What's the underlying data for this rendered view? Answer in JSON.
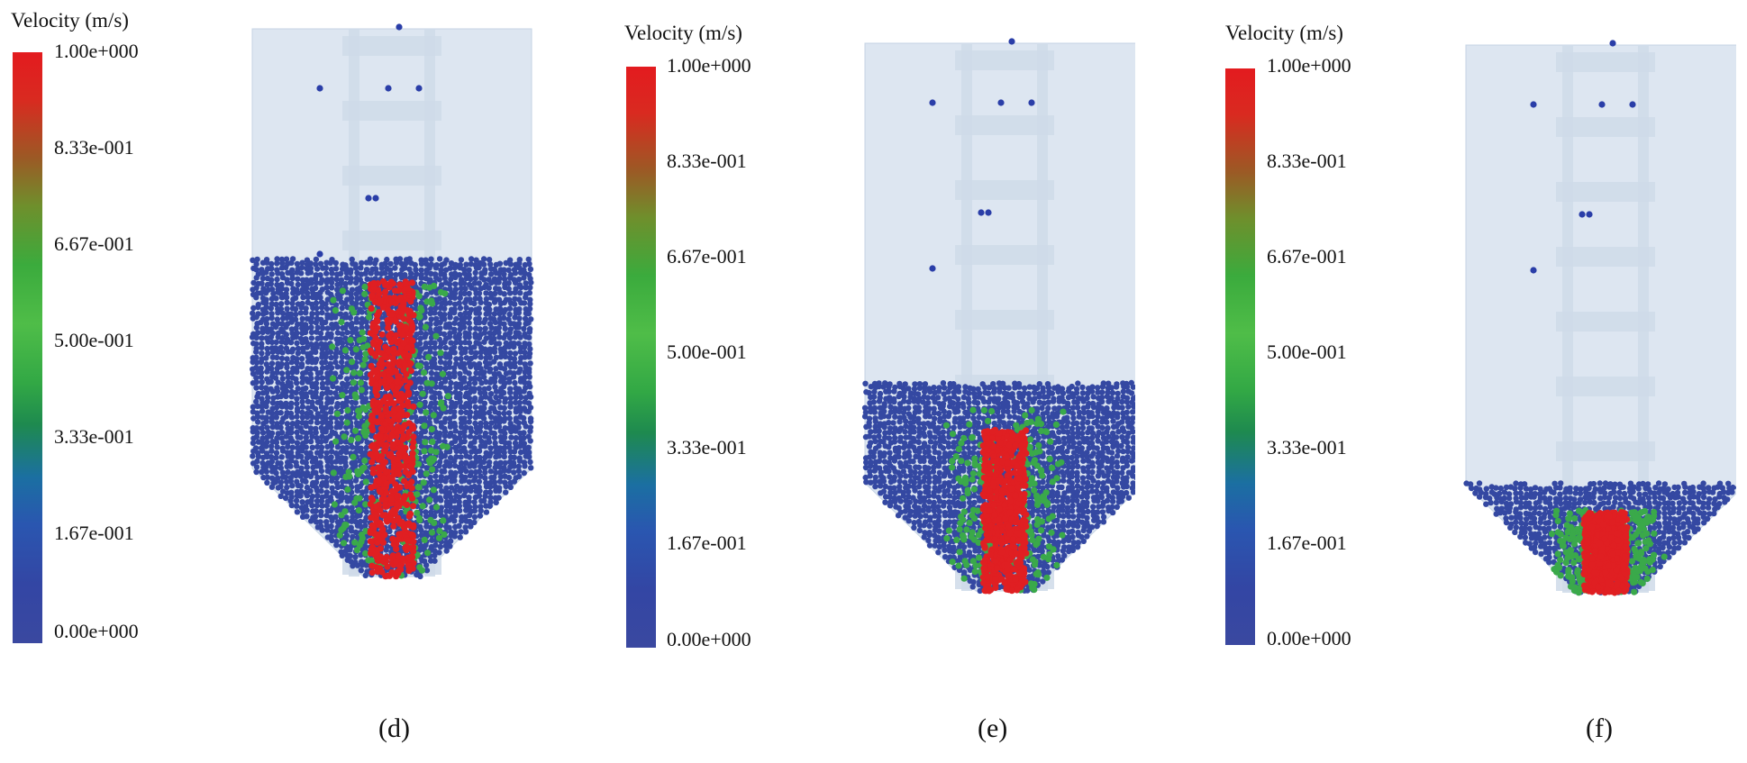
{
  "figure": {
    "panels": [
      {
        "id": "d",
        "legend_title": "Velocity (m/s)",
        "ticks": [
          "1.00e+000",
          "8.33e-001",
          "6.67e-001",
          "5.00e-001",
          "3.33e-001",
          "1.67e-001",
          "0.00e+000"
        ],
        "caption": "(d)",
        "fill_fraction": 0.58,
        "red_core_fraction": 0.55
      },
      {
        "id": "e",
        "legend_title": "Velocity (m/s)",
        "ticks": [
          "1.00e+000",
          "8.33e-001",
          "6.67e-001",
          "5.00e-001",
          "3.33e-001",
          "1.67e-001",
          "0.00e+000"
        ],
        "caption": "(e)",
        "fill_fraction": 0.38,
        "red_core_fraction": 0.3
      },
      {
        "id": "f",
        "legend_title": "Velocity (m/s)",
        "ticks": [
          "1.00e+000",
          "8.33e-001",
          "6.67e-001",
          "5.00e-001",
          "3.33e-001",
          "1.67e-001",
          "0.00e+000"
        ],
        "caption": "(f)",
        "fill_fraction": 0.2,
        "red_core_fraction": 0.15
      }
    ],
    "colors": {
      "silo_wall": "#dde6f1",
      "silo_edge": "#c5d3e4",
      "ladder": "#cfdbe9",
      "bulk_particles": "#3448a2",
      "slow_particles": "#3aa94a",
      "fast_particles": "#e01f22",
      "stray_particles": "#2a3ea8"
    }
  }
}
